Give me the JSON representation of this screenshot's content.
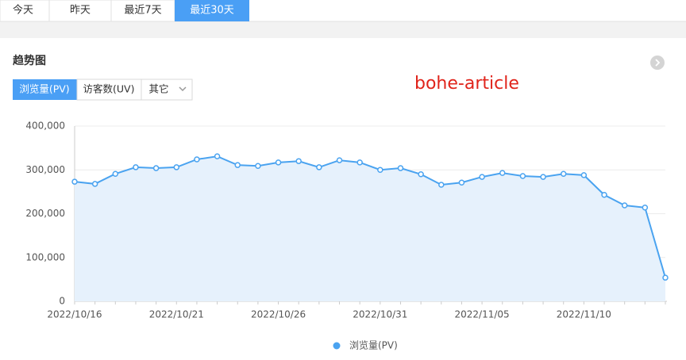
{
  "tabs": [
    "今天",
    "昨天",
    "最近7天",
    "最近30天"
  ],
  "section_title": "趋势图",
  "metric_tabs": [
    "浏览量(PV)",
    "访客数(UV)",
    "其它"
  ],
  "watermark": "bohe-article",
  "chart_data": {
    "type": "line",
    "categories": [
      "2022/10/16",
      null,
      null,
      null,
      null,
      "2022/10/21",
      null,
      null,
      null,
      null,
      "2022/10/26",
      null,
      null,
      null,
      null,
      "2022/10/31",
      null,
      null,
      null,
      null,
      "2022/11/05",
      null,
      null,
      null,
      null,
      "2022/11/10",
      null,
      null,
      null,
      null
    ],
    "series": [
      {
        "name": "浏览量(PV)",
        "color": "#4aa3f0",
        "values": [
          273000,
          268000,
          291000,
          306000,
          304000,
          306000,
          324000,
          331000,
          311000,
          309000,
          317000,
          320000,
          306000,
          322000,
          317000,
          300000,
          304000,
          290000,
          266000,
          271000,
          284000,
          293000,
          286000,
          284000,
          291000,
          288000,
          243000,
          219000,
          214000,
          54000
        ]
      }
    ],
    "ylim": [
      0,
      400000
    ],
    "yticks": [
      0,
      {
        "value": 100000,
        "label": "100,000"
      },
      {
        "value": 200000,
        "label": "200,000"
      },
      {
        "value": 300000,
        "label": "300,000"
      },
      {
        "value": 400000,
        "label": "400,000"
      }
    ],
    "grid": true,
    "area": true,
    "legend": "bottom"
  }
}
